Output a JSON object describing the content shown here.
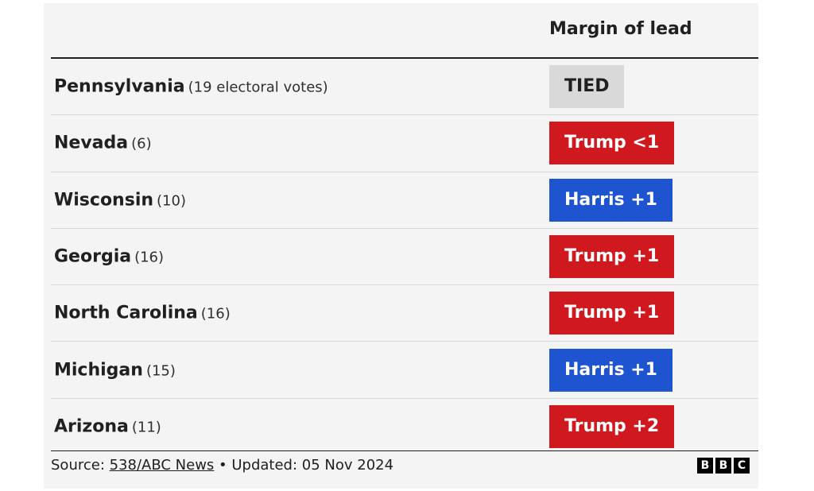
{
  "header": {
    "column_label": "Margin of lead"
  },
  "chart_data": {
    "type": "table",
    "columns": [
      "",
      "Margin of lead"
    ],
    "rows": [
      {
        "state": "Pennsylvania",
        "votes": "(19 electoral votes)",
        "lead": "TIED",
        "leader": "tied",
        "color": "#d9d9d9",
        "text_color": "#202020"
      },
      {
        "state": "Nevada",
        "votes": "(6)",
        "lead": "Trump <1",
        "leader": "trump",
        "color": "#d0191f",
        "text_color": "#ffffff"
      },
      {
        "state": "Wisconsin",
        "votes": "(10)",
        "lead": "Harris +1",
        "leader": "harris",
        "color": "#1e54d0",
        "text_color": "#ffffff"
      },
      {
        "state": "Georgia",
        "votes": "(16)",
        "lead": "Trump +1",
        "leader": "trump",
        "color": "#d0191f",
        "text_color": "#ffffff"
      },
      {
        "state": "North Carolina",
        "votes": "(16)",
        "lead": "Trump +1",
        "leader": "trump",
        "color": "#d0191f",
        "text_color": "#ffffff"
      },
      {
        "state": "Michigan",
        "votes": "(15)",
        "lead": "Harris +1",
        "leader": "harris",
        "color": "#1e54d0",
        "text_color": "#ffffff"
      },
      {
        "state": "Arizona",
        "votes": "(11)",
        "lead": "Trump +2",
        "leader": "trump",
        "color": "#d0191f",
        "text_color": "#ffffff"
      }
    ]
  },
  "footer": {
    "source_prefix": "Source: ",
    "source_link": "538/ABC News",
    "updated": " • Updated: 05 Nov 2024",
    "logo_letters": [
      "B",
      "B",
      "C"
    ]
  },
  "colors": {
    "trump": "#d0191f",
    "harris": "#1e54d0",
    "tied": "#d9d9d9",
    "panel_bg": "#f4f4f4"
  }
}
